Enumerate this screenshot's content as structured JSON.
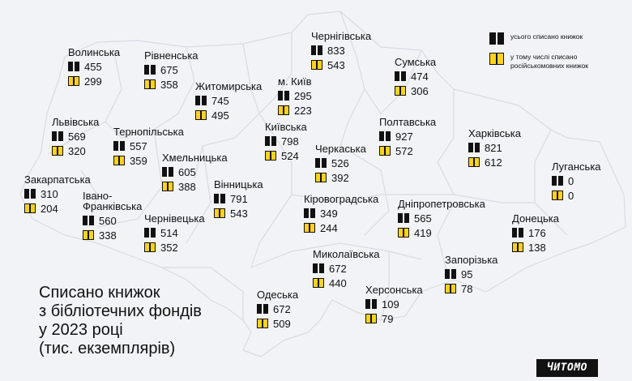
{
  "title": {
    "lines": [
      "Списано книжок",
      "з бібліотечних фондів",
      "у 2023 році",
      "(тис. екземплярів)"
    ]
  },
  "legend": {
    "total_label": "усього списано книжок",
    "russian_label": "у тому числі списано російськомовних книжок"
  },
  "logo_text": "ЧИТОМО",
  "colors": {
    "background": "#f2f3f7",
    "border": "#d9dbe3",
    "total_icon": "#111111",
    "russian_icon": "#ffd21f"
  },
  "regions": [
    {
      "id": "volynska",
      "name": "Волинська",
      "total": "455",
      "russian": "299"
    },
    {
      "id": "rivnenska",
      "name": "Рівненська",
      "total": "675",
      "russian": "358"
    },
    {
      "id": "zhytomyrska",
      "name": "Житомирська",
      "total": "745",
      "russian": "495"
    },
    {
      "id": "kyiv-city",
      "name": "м. Київ",
      "total": "295",
      "russian": "223"
    },
    {
      "id": "chernihivska",
      "name": "Чернігівська",
      "total": "833",
      "russian": "543"
    },
    {
      "id": "sumska",
      "name": "Сумська",
      "total": "474",
      "russian": "306"
    },
    {
      "id": "lvivska",
      "name": "Львівська",
      "total": "569",
      "russian": "320"
    },
    {
      "id": "ternopilska",
      "name": "Тернопільська",
      "total": "557",
      "russian": "359"
    },
    {
      "id": "kyivska",
      "name": "Київська",
      "total": "798",
      "russian": "524"
    },
    {
      "id": "poltavska",
      "name": "Полтавська",
      "total": "927",
      "russian": "572"
    },
    {
      "id": "kharkivska",
      "name": "Харківська",
      "total": "821",
      "russian": "612"
    },
    {
      "id": "khmelnytska",
      "name": "Хмельницька",
      "total": "605",
      "russian": "388"
    },
    {
      "id": "cherkaska",
      "name": "Черкаська",
      "total": "526",
      "russian": "392"
    },
    {
      "id": "luhanska",
      "name": "Луганська",
      "total": "0",
      "russian": "0"
    },
    {
      "id": "zakarpatska",
      "name": "Закарпатська",
      "total": "310",
      "russian": "204"
    },
    {
      "id": "vinnytska",
      "name": "Вінницька",
      "total": "791",
      "russian": "543"
    },
    {
      "id": "kirovohradska",
      "name": "Кіровоградська",
      "total": "349",
      "russian": "244"
    },
    {
      "id": "dnipropetrovska",
      "name": "Дніпропетровська",
      "total": "565",
      "russian": "419"
    },
    {
      "id": "ivano-frankivska",
      "name": "Івано-\nФранківська",
      "total": "560",
      "russian": "338"
    },
    {
      "id": "donetska",
      "name": "Донецька",
      "total": "176",
      "russian": "138"
    },
    {
      "id": "chernivetska",
      "name": "Чернівецька",
      "total": "514",
      "russian": "352"
    },
    {
      "id": "mykolaivska",
      "name": "Миколаївська",
      "total": "672",
      "russian": "440"
    },
    {
      "id": "zaporizka",
      "name": "Запорізька",
      "total": "95",
      "russian": "78"
    },
    {
      "id": "odeska",
      "name": "Одеська",
      "total": "672",
      "russian": "509"
    },
    {
      "id": "khersonska",
      "name": "Херсонська",
      "total": "109",
      "russian": "79"
    }
  ]
}
